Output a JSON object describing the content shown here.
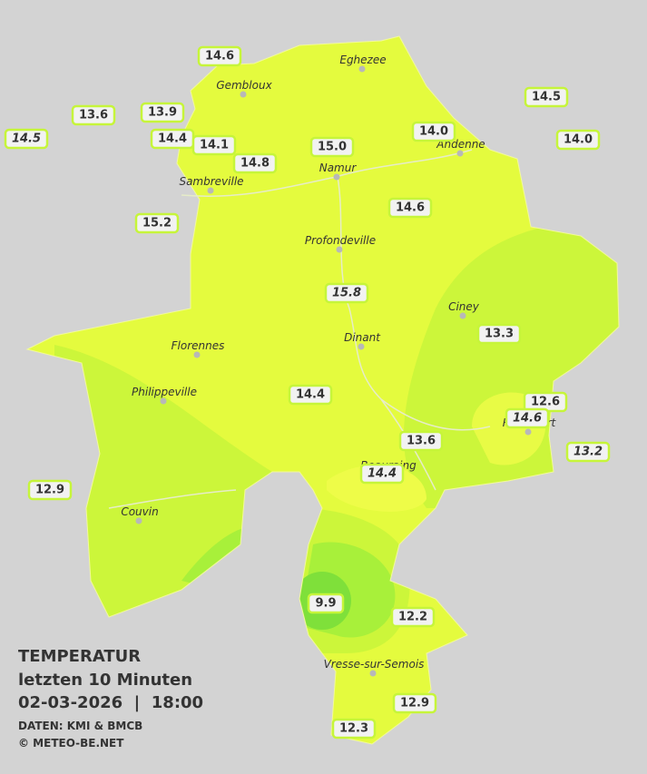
{
  "title": "TEMPERATUR",
  "subtitle": "letzten 10 Minuten",
  "timestamp": "02-03-2026  |  18:00",
  "source": "DATEN: KMI & BMCB",
  "copyright": "© METEO-BE.NET",
  "cities": [
    "Eghezee",
    "Gembloux",
    "Andenne",
    "Namur",
    "Sambreville",
    "Profondeville",
    "Ciney",
    "Dinant",
    "Florennes",
    "Philippeville",
    "Beauraing",
    "Rochefort",
    "Couvin",
    "Vresse-sur-Semois"
  ],
  "stations": [
    {
      "label": "14.6",
      "italic": false
    },
    {
      "label": "13.6",
      "italic": false
    },
    {
      "label": "13.9",
      "italic": false
    },
    {
      "label": "14.5",
      "italic": true
    },
    {
      "label": "14.4",
      "italic": false
    },
    {
      "label": "14.1",
      "italic": false
    },
    {
      "label": "14.8",
      "italic": false
    },
    {
      "label": "15.0",
      "italic": false
    },
    {
      "label": "14.0",
      "italic": false
    },
    {
      "label": "14.5",
      "italic": false
    },
    {
      "label": "14.0",
      "italic": false
    },
    {
      "label": "15.2",
      "italic": false
    },
    {
      "label": "14.6",
      "italic": false
    },
    {
      "label": "15.8",
      "italic": true
    },
    {
      "label": "13.3",
      "italic": false
    },
    {
      "label": "14.4",
      "italic": false
    },
    {
      "label": "12.6",
      "italic": false
    },
    {
      "label": "14.6",
      "italic": true
    },
    {
      "label": "13.6",
      "italic": false
    },
    {
      "label": "13.2",
      "italic": true
    },
    {
      "label": "14.4",
      "italic": true
    },
    {
      "label": "12.9",
      "italic": false
    },
    {
      "label": "9.9",
      "italic": false
    },
    {
      "label": "12.2",
      "italic": false
    },
    {
      "label": "12.9",
      "italic": false
    },
    {
      "label": "12.3",
      "italic": false
    }
  ]
}
